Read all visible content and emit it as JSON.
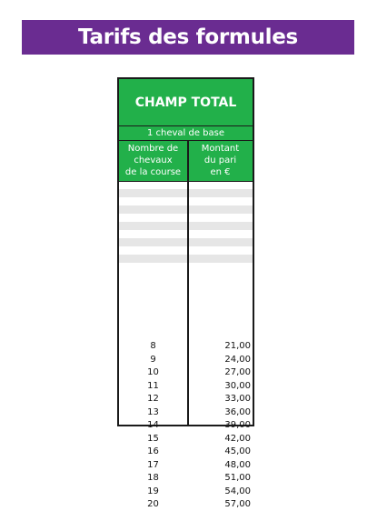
{
  "banner": {
    "title": "Tarifs des formules"
  },
  "table": {
    "title": "CHAMP TOTAL",
    "subtitle": "1 cheval de base",
    "col_horses": "Nombre de\nchevaux\nde la course",
    "col_amount": "Montant\ndu pari\nen €",
    "blank_stripes": 5,
    "rows": [
      {
        "horses": "8",
        "amount": "21,00"
      },
      {
        "horses": "9",
        "amount": "24,00"
      },
      {
        "horses": "10",
        "amount": "27,00"
      },
      {
        "horses": "11",
        "amount": "30,00"
      },
      {
        "horses": "12",
        "amount": "33,00"
      },
      {
        "horses": "13",
        "amount": "36,00"
      },
      {
        "horses": "14",
        "amount": "39,00"
      },
      {
        "horses": "15",
        "amount": "42,00"
      },
      {
        "horses": "16",
        "amount": "45,00"
      },
      {
        "horses": "17",
        "amount": "48,00"
      },
      {
        "horses": "18",
        "amount": "51,00"
      },
      {
        "horses": "19",
        "amount": "54,00"
      },
      {
        "horses": "20",
        "amount": "57,00"
      }
    ]
  },
  "colors": {
    "banner": "#6a2c91",
    "header": "#22b04a",
    "stripe": "#e6e6e6"
  }
}
